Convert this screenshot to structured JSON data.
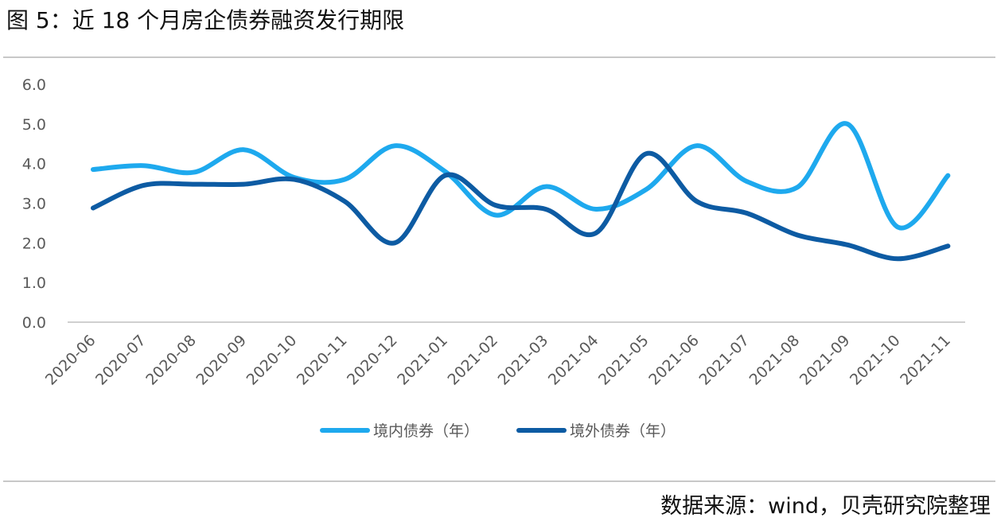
{
  "figure": {
    "title": "图 5：近 18 个月房企债券融资发行期限",
    "source": "数据来源：wind，贝壳研究院整理"
  },
  "colors": {
    "domestic": "#1EA9EE",
    "overseas": "#0D5BA3",
    "axis": "#bfbfbf",
    "tick_text": "#595959"
  },
  "chart_data": {
    "type": "line",
    "title": "",
    "xlabel": "",
    "ylabel": "",
    "ylim": [
      0,
      6
    ],
    "ytick_labels": [
      "0.0",
      "1.0",
      "2.0",
      "3.0",
      "4.0",
      "5.0",
      "6.0"
    ],
    "grid": false,
    "legend_position": "bottom-center",
    "categories": [
      "2020-06",
      "2020-07",
      "2020-08",
      "2020-09",
      "2020-10",
      "2020-11",
      "2020-12",
      "2021-01",
      "2021-02",
      "2021-03",
      "2021-04",
      "2021-05",
      "2021-06",
      "2021-07",
      "2021-08",
      "2021-09",
      "2021-10",
      "2021-11"
    ],
    "series": [
      {
        "name": "境内债券（年）",
        "color": "#1EA9EE",
        "values": [
          3.85,
          3.95,
          3.78,
          4.35,
          3.65,
          3.6,
          4.45,
          3.8,
          2.7,
          3.42,
          2.85,
          3.35,
          4.45,
          3.55,
          3.4,
          5.0,
          2.4,
          3.7
        ]
      },
      {
        "name": "境外债券（年）",
        "color": "#0D5BA3",
        "values": [
          2.88,
          3.45,
          3.48,
          3.48,
          3.6,
          3.05,
          2.0,
          3.7,
          2.95,
          2.85,
          2.25,
          4.25,
          3.05,
          2.75,
          2.2,
          1.95,
          1.6,
          1.92
        ]
      }
    ]
  }
}
